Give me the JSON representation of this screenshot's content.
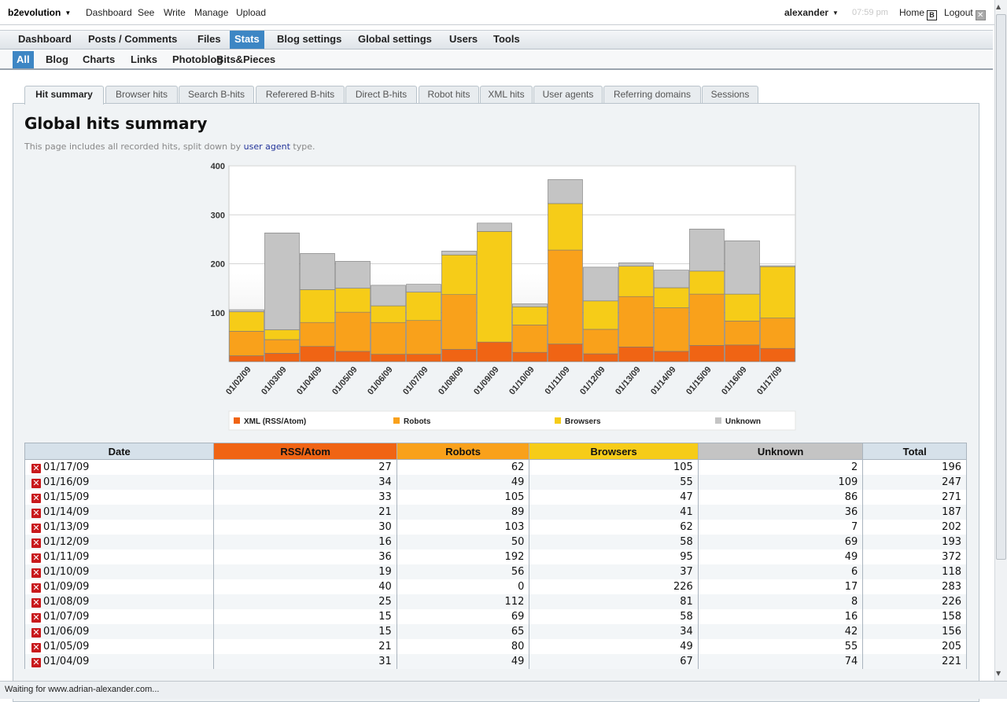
{
  "topbar": {
    "brand": "b2evolution",
    "links": [
      "Dashboard",
      "See",
      "Write",
      "Manage",
      "Upload"
    ],
    "user": "alexander",
    "time": "07:59 pm",
    "home": "Home",
    "logout": "Logout"
  },
  "main_menu": [
    {
      "label": "Dashboard",
      "selected": false
    },
    {
      "label": "Posts / Comments",
      "selected": false
    },
    {
      "label": "Files",
      "selected": false
    },
    {
      "label": "Stats",
      "selected": true
    },
    {
      "label": "Blog settings",
      "selected": false
    },
    {
      "label": "Global settings",
      "selected": false
    },
    {
      "label": "Users",
      "selected": false
    },
    {
      "label": "Tools",
      "selected": false
    }
  ],
  "sub_menu": [
    {
      "label": "All",
      "selected": true
    },
    {
      "label": "Blog",
      "selected": false
    },
    {
      "label": "Charts",
      "selected": false
    },
    {
      "label": "Links",
      "selected": false
    },
    {
      "label": "Photoblog",
      "selected": false
    },
    {
      "label": "Bits&Pieces",
      "selected": false
    }
  ],
  "tabs": [
    {
      "label": "Hit summary",
      "selected": true
    },
    {
      "label": "Browser hits",
      "selected": false
    },
    {
      "label": "Search B-hits",
      "selected": false
    },
    {
      "label": "Referered B-hits",
      "selected": false
    },
    {
      "label": "Direct B-hits",
      "selected": false
    },
    {
      "label": "Robot hits",
      "selected": false
    },
    {
      "label": "XML hits",
      "selected": false
    },
    {
      "label": "User agents",
      "selected": false
    },
    {
      "label": "Referring domains",
      "selected": false
    },
    {
      "label": "Sessions",
      "selected": false
    }
  ],
  "page": {
    "title": "Global hits summary",
    "desc_before": "This page includes all recorded hits, split down by",
    "desc_link": "user agent",
    "desc_after": "type."
  },
  "colors": {
    "xml": "#f06414",
    "robots": "#f9a11b",
    "browsers": "#f6cc18",
    "unknown": "#c4c4c4",
    "selected_menu": "#3d86c4"
  },
  "chart_data": {
    "type": "bar",
    "stacked": true,
    "categories": [
      "01/02/09",
      "01/03/09",
      "01/04/09",
      "01/05/09",
      "01/06/09",
      "01/07/09",
      "01/08/09",
      "01/09/09",
      "01/10/09",
      "01/11/09",
      "01/12/09",
      "01/13/09",
      "01/14/09",
      "01/15/09",
      "01/16/09",
      "01/17/09"
    ],
    "series": [
      {
        "name": "XML (RSS/Atom)",
        "values": [
          12,
          17,
          31,
          21,
          15,
          15,
          25,
          40,
          19,
          36,
          16,
          30,
          21,
          33,
          34,
          27
        ]
      },
      {
        "name": "Robots",
        "values": [
          50,
          28,
          49,
          80,
          65,
          69,
          112,
          0,
          56,
          192,
          50,
          103,
          89,
          105,
          49,
          62
        ]
      },
      {
        "name": "Browsers",
        "values": [
          40,
          20,
          67,
          49,
          34,
          58,
          81,
          226,
          37,
          95,
          58,
          62,
          41,
          47,
          55,
          105
        ]
      },
      {
        "name": "Unknown",
        "values": [
          4,
          198,
          74,
          55,
          42,
          16,
          8,
          17,
          6,
          49,
          69,
          7,
          36,
          86,
          109,
          2
        ]
      }
    ],
    "yticks": [
      100,
      200,
      300,
      400
    ],
    "ylim": [
      0,
      400
    ],
    "legend_position": "bottom",
    "grid": true
  },
  "table": {
    "headers": [
      "Date",
      "RSS/Atom",
      "Robots",
      "Browsers",
      "Unknown",
      "Total"
    ],
    "rows": [
      [
        "01/17/09",
        "27",
        "62",
        "105",
        "2",
        "196"
      ],
      [
        "01/16/09",
        "34",
        "49",
        "55",
        "109",
        "247"
      ],
      [
        "01/15/09",
        "33",
        "105",
        "47",
        "86",
        "271"
      ],
      [
        "01/14/09",
        "21",
        "89",
        "41",
        "36",
        "187"
      ],
      [
        "01/13/09",
        "30",
        "103",
        "62",
        "7",
        "202"
      ],
      [
        "01/12/09",
        "16",
        "50",
        "58",
        "69",
        "193"
      ],
      [
        "01/11/09",
        "36",
        "192",
        "95",
        "49",
        "372"
      ],
      [
        "01/10/09",
        "19",
        "56",
        "37",
        "6",
        "118"
      ],
      [
        "01/09/09",
        "40",
        "0",
        "226",
        "17",
        "283"
      ],
      [
        "01/08/09",
        "25",
        "112",
        "81",
        "8",
        "226"
      ],
      [
        "01/07/09",
        "15",
        "69",
        "58",
        "16",
        "158"
      ],
      [
        "01/06/09",
        "15",
        "65",
        "34",
        "42",
        "156"
      ],
      [
        "01/05/09",
        "21",
        "80",
        "49",
        "55",
        "205"
      ],
      [
        "01/04/09",
        "31",
        "49",
        "67",
        "74",
        "221"
      ]
    ]
  },
  "status": "Waiting for www.adrian-alexander.com..."
}
